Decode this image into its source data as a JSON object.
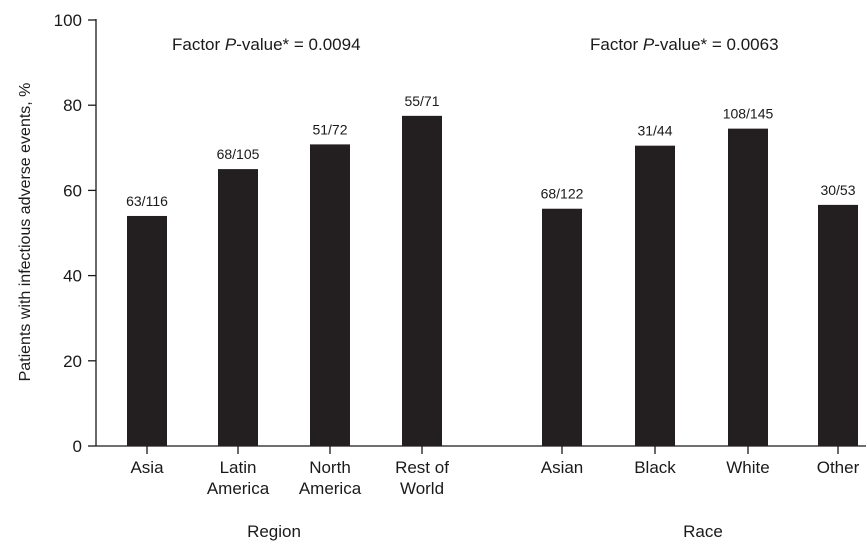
{
  "chart_data": {
    "type": "bar",
    "ylabel": "Patients with infectious adverse events, %",
    "ylim": [
      0,
      100
    ],
    "yticks": [
      "0",
      "20",
      "40",
      "60",
      "80",
      "100"
    ],
    "grid": false,
    "bar_color": "#231f20",
    "groups": [
      {
        "name": "Region",
        "pvalue": {
          "prefix": "Factor ",
          "italic": "P",
          "suffix": "-value* = 0.0094"
        },
        "categories": [
          [
            "Asia"
          ],
          [
            "Latin",
            "America"
          ],
          [
            "North",
            "America"
          ],
          [
            "Rest of",
            "World"
          ]
        ],
        "values": [
          54,
          65,
          70.8,
          77.5
        ],
        "labels": [
          "63/116",
          "68/105",
          "51/72",
          "55/71"
        ]
      },
      {
        "name": "Race",
        "pvalue": {
          "prefix": "Factor ",
          "italic": "P",
          "suffix": "-value* = 0.0063"
        },
        "categories": [
          [
            "Asian"
          ],
          [
            "Black"
          ],
          [
            "White"
          ],
          [
            "Other"
          ]
        ],
        "values": [
          55.7,
          70.5,
          74.5,
          56.6
        ],
        "labels": [
          "68/122",
          "31/44",
          "108/145",
          "30/53"
        ]
      }
    ]
  }
}
